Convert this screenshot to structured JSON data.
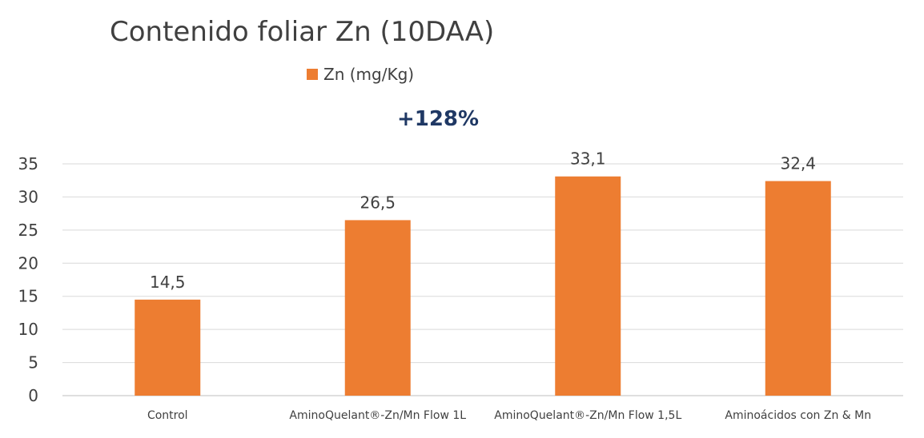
{
  "chart_data": {
    "type": "bar",
    "title": "Contenido foliar Zn (10DAA)",
    "categories": [
      "Control",
      "AminoQuelant®-Zn/Mn Flow 1L",
      "AminoQuelant®-Zn/Mn Flow 1,5L",
      "Aminoácidos con Zn & Mn"
    ],
    "series": [
      {
        "name": "Zn (mg/Kg)",
        "values": [
          14.5,
          26.5,
          33.1,
          32.4
        ],
        "color": "#ed7d31"
      }
    ],
    "data_labels": [
      "14,5",
      "26,5",
      "33,1",
      "32,4"
    ],
    "ylim": [
      0,
      35
    ],
    "yticks": [
      "0",
      "5",
      "10",
      "15",
      "20",
      "25",
      "30",
      "35"
    ],
    "grid": true,
    "legend": "top-center",
    "annotation": "+128%",
    "xlabel": "",
    "ylabel": ""
  }
}
